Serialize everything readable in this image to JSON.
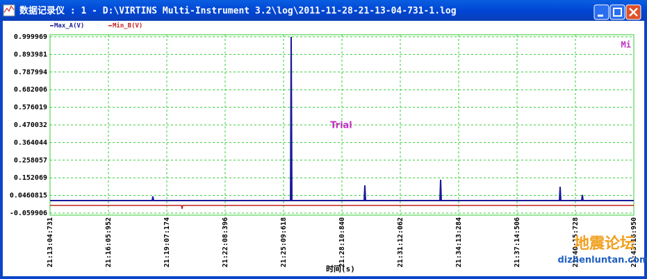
{
  "window": {
    "title": "数据记录仪 : 1 - D:\\VIRTINS Multi-Instrument 3.2\\log\\2011-11-28-21-13-04-731-1.log"
  },
  "chart_data": {
    "type": "line",
    "x_label": "时间(s)",
    "annotations": [
      "Trial",
      "Mi"
    ],
    "series": [
      {
        "name": "Max_A(V)",
        "color": "#1a1a9a",
        "x": [
          0,
          317.1,
          319.3,
          321.4,
          746.5,
          748.6,
          750.8,
          975.2,
          977.3,
          979.5,
          1210.3,
          1212.5,
          1214.6,
          1581.4,
          1583.5,
          1585.7,
          1650.4,
          1652.6,
          1654.7,
          1812.219
        ],
        "values": [
          0.015,
          0.015,
          0.04,
          0.015,
          0.015,
          0.999969,
          0.015,
          0.015,
          0.107,
          0.015,
          0.015,
          0.14,
          0.015,
          0.015,
          0.098,
          0.015,
          0.015,
          0.049,
          0.015,
          0.015
        ]
      },
      {
        "name": "Min_B(V)",
        "color": "#c0201c",
        "x": [
          0,
          407.8,
          409.9,
          412.1,
          1812.219
        ],
        "values": [
          -0.014,
          -0.014,
          -0.035,
          -0.014,
          -0.014
        ]
      }
    ],
    "xlim": [
      0,
      1812.219
    ],
    "xticks": [
      {
        "value": 0,
        "label": "21:13:04:731"
      },
      {
        "value": 181.221,
        "label": "21:16:05:952"
      },
      {
        "value": 362.443,
        "label": "21:19:07:174"
      },
      {
        "value": 543.665,
        "label": "21:22:08:396"
      },
      {
        "value": 724.887,
        "label": "21:25:09:618"
      },
      {
        "value": 906.109,
        "label": "21:28:10:840"
      },
      {
        "value": 1087.331,
        "label": "21:31:12:062"
      },
      {
        "value": 1268.553,
        "label": "21:34:13:284"
      },
      {
        "value": 1449.775,
        "label": "21:37:14:506"
      },
      {
        "value": 1630.997,
        "label": "21:40:15:728"
      },
      {
        "value": 1812.219,
        "label": "21:43:16:950"
      }
    ],
    "ylim": [
      -0.059906,
      0.999969
    ],
    "yticks": [
      0.999969,
      0.893981,
      0.787994,
      0.682006,
      0.576019,
      0.470032,
      0.364044,
      0.258057,
      0.152069,
      0.0460815,
      -0.059906
    ],
    "grid": true
  },
  "watermark": {
    "name": "地震论坛",
    "url": "dizhenluntan.com"
  }
}
